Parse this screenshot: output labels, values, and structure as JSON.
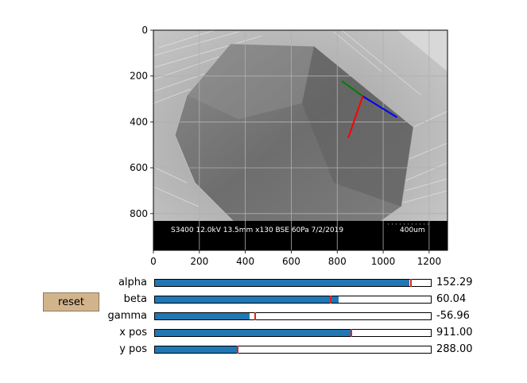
{
  "figure": {
    "x_axis": {
      "range": [
        0,
        1280
      ],
      "ticks": [
        "0",
        "200",
        "400",
        "600",
        "800",
        "1000",
        "1200"
      ]
    },
    "y_axis": {
      "range": [
        0,
        960
      ],
      "inverted": true,
      "ticks": [
        "0",
        "200",
        "400",
        "600",
        "800"
      ]
    },
    "grid": true,
    "sem_info_bar": {
      "text": "S3400 12.0kV 13.5mm x130 BSE 60Pa 7/2/2019",
      "scale_label": "400um"
    },
    "overlay_axes": {
      "origin": [
        911,
        288
      ],
      "segments": [
        {
          "name": "green-axis",
          "color": "#008000",
          "to": [
            820,
            222
          ]
        },
        {
          "name": "blue-axis",
          "color": "#0000ff",
          "to": [
            1060,
            380
          ]
        },
        {
          "name": "red-axis",
          "color": "#ff0000",
          "to": [
            848,
            470
          ]
        }
      ]
    }
  },
  "sliders": [
    {
      "id": "alpha",
      "label": "alpha",
      "value_text": "152.29",
      "fraction": 0.922,
      "initial_fraction": 0.928
    },
    {
      "id": "beta",
      "label": "beta",
      "value_text": "60.04",
      "fraction": 0.666,
      "initial_fraction": 0.636
    },
    {
      "id": "gamma",
      "label": "gamma",
      "value_text": "-56.96",
      "fraction": 0.342,
      "initial_fraction": 0.362
    },
    {
      "id": "x-pos",
      "label": "x pos",
      "value_text": "911.00",
      "fraction": 0.712,
      "initial_fraction": 0.712
    },
    {
      "id": "y-pos",
      "label": "y pos",
      "value_text": "288.00",
      "fraction": 0.3,
      "initial_fraction": 0.3
    }
  ],
  "reset_button": {
    "label": "reset",
    "color": "#d2b48c"
  },
  "colors": {
    "slider_fill": "#1f77b4",
    "slider_initial_marker": "#d62728"
  }
}
